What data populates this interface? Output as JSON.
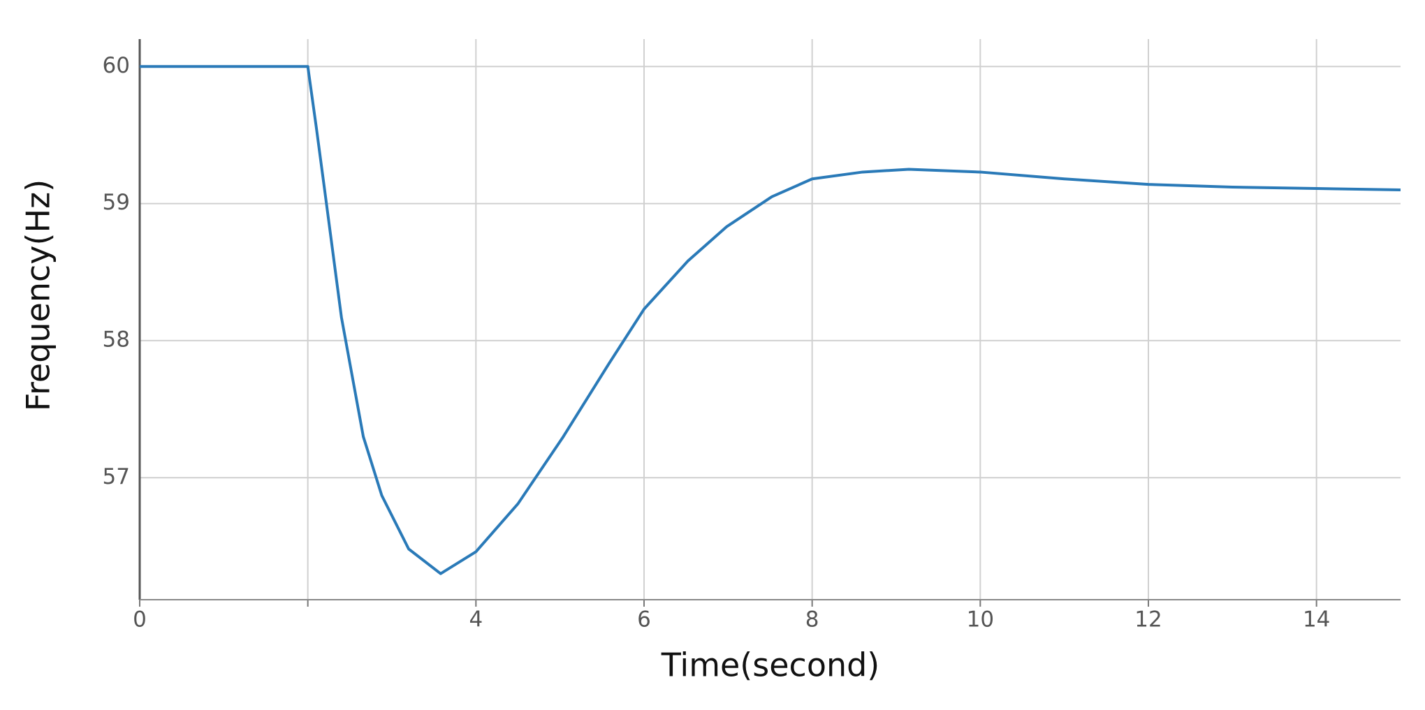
{
  "chart_data": {
    "type": "line",
    "xlabel": "Time(second)",
    "ylabel": "Frequency(Hz)",
    "xlim": [
      0,
      15
    ],
    "ylim": [
      56.11,
      60.2
    ],
    "xticks": [
      0,
      {
        "value": 2,
        "label": null
      },
      4,
      6,
      8,
      10,
      12,
      14
    ],
    "yticks": [
      57,
      58,
      59,
      60
    ],
    "grid": true,
    "x": [
      0,
      2,
      2.1,
      2.2,
      2.4,
      2.66,
      2.88,
      3.2,
      3.58,
      4,
      4.5,
      5.04,
      5.58,
      6,
      6.52,
      6.98,
      7.52,
      8,
      8.6,
      9.15,
      10,
      11,
      12,
      13,
      14,
      15
    ],
    "series": [
      {
        "color": "#2a7ab8",
        "values": [
          60,
          60,
          59.56,
          59.1,
          58.17,
          57.3,
          56.87,
          56.48,
          56.3,
          56.46,
          56.81,
          57.3,
          57.83,
          58.23,
          58.58,
          58.83,
          59.05,
          59.18,
          59.23,
          59.25,
          59.23,
          59.18,
          59.14,
          59.12,
          59.11,
          59.1
        ]
      }
    ]
  }
}
